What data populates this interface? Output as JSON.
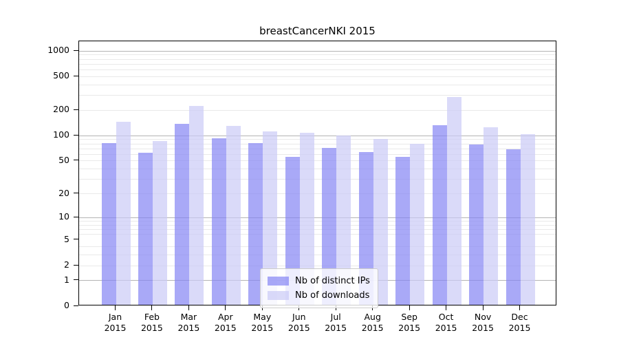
{
  "chart_data": {
    "type": "bar",
    "title": "breastCancerNKI 2015",
    "categories": [
      "Jan",
      "Feb",
      "Mar",
      "Apr",
      "May",
      "Jun",
      "Jul",
      "Aug",
      "Sep",
      "Oct",
      "Nov",
      "Dec"
    ],
    "category_year": "2015",
    "series": [
      {
        "name": "Nb of distinct IPs",
        "color": "rgba(132,132,243,0.7)",
        "values": [
          79,
          60,
          134,
          89,
          79,
          54,
          69,
          61,
          54,
          128,
          76,
          66
        ]
      },
      {
        "name": "Nb of downloads",
        "color": "rgba(202,202,247,0.7)",
        "values": [
          140,
          84,
          217,
          127,
          109,
          104,
          96,
          88,
          77,
          274,
          122,
          101
        ]
      }
    ],
    "xlabel": "",
    "ylabel": "",
    "y_scale": "log10(1+x)",
    "ylim": [
      0,
      1300
    ],
    "y_ticks": [
      0,
      1,
      2,
      5,
      10,
      20,
      50,
      100,
      200,
      500,
      1000
    ],
    "major_gridlines": [
      1,
      10,
      100,
      1000
    ],
    "minor_gridlines": [
      2,
      3,
      4,
      6,
      7,
      8,
      9,
      20,
      30,
      40,
      50,
      60,
      70,
      80,
      90,
      200,
      300,
      400,
      500,
      600,
      700,
      800,
      900
    ],
    "grid": true,
    "legend_position": "lower-center"
  },
  "colors": {
    "bar_distinct_ips": "rgba(132,132,243,0.7)",
    "bar_downloads": "rgba(202,202,247,0.7)",
    "major_grid": "#b3b3b3",
    "minor_grid": "#e9e9e9",
    "axis": "#000000",
    "legend_border": "#cccccc"
  }
}
